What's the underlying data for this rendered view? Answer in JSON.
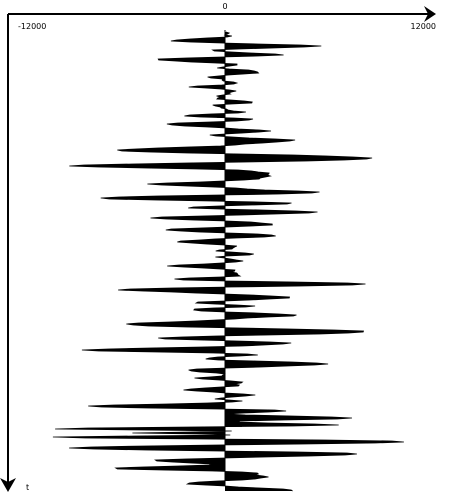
{
  "chart_data": {
    "type": "area",
    "orientation": "vertical-time",
    "title": "",
    "xlabel": "",
    "ylabel": "t",
    "xlim": [
      -12000,
      12000
    ],
    "x_ticks": [
      {
        "value": -12000,
        "label": "-12000"
      },
      {
        "value": 0,
        "label": "0"
      },
      {
        "value": 12000,
        "label": "12000"
      }
    ],
    "grid": false,
    "legend": "none",
    "trace_color": "#000000",
    "fill": "wiggle-both-sides",
    "n_samples": 460,
    "events": [
      {
        "t": 10,
        "a": -2300,
        "w": 4
      },
      {
        "t": 14,
        "a": 5200,
        "w": 5
      },
      {
        "t": 22,
        "a": 3600,
        "w": 4
      },
      {
        "t": 28,
        "a": -3000,
        "w": 4
      },
      {
        "t": 40,
        "a": 2200,
        "w": 4
      },
      {
        "t": 55,
        "a": -1900,
        "w": 3
      },
      {
        "t": 70,
        "a": 1700,
        "w": 3
      },
      {
        "t": 84,
        "a": -2800,
        "w": 3
      },
      {
        "t": 92,
        "a": -3000,
        "w": 4
      },
      {
        "t": 100,
        "a": 3000,
        "w": 4
      },
      {
        "t": 108,
        "a": 4200,
        "w": 5
      },
      {
        "t": 118,
        "a": -3900,
        "w": 4
      },
      {
        "t": 126,
        "a": 7600,
        "w": 5
      },
      {
        "t": 134,
        "a": -6600,
        "w": 4
      },
      {
        "t": 144,
        "a": 2800,
        "w": 5
      },
      {
        "t": 152,
        "a": -3400,
        "w": 3
      },
      {
        "t": 160,
        "a": 3500,
        "w": 4
      },
      {
        "t": 166,
        "a": -6200,
        "w": 4
      },
      {
        "t": 172,
        "a": 2200,
        "w": 3
      },
      {
        "t": 180,
        "a": 5000,
        "w": 4
      },
      {
        "t": 186,
        "a": -2500,
        "w": 3
      },
      {
        "t": 192,
        "a": 2300,
        "w": 3
      },
      {
        "t": 198,
        "a": -3200,
        "w": 3
      },
      {
        "t": 204,
        "a": 1900,
        "w": 3
      },
      {
        "t": 210,
        "a": -2400,
        "w": 4
      },
      {
        "t": 222,
        "a": 1700,
        "w": 3
      },
      {
        "t": 234,
        "a": -3100,
        "w": 4
      },
      {
        "t": 244,
        "a": 1600,
        "w": 3
      },
      {
        "t": 252,
        "a": 7500,
        "w": 4
      },
      {
        "t": 258,
        "a": -3300,
        "w": 4
      },
      {
        "t": 266,
        "a": 3400,
        "w": 4
      },
      {
        "t": 274,
        "a": 2000,
        "w": 3
      },
      {
        "t": 283,
        "a": 4000,
        "w": 4
      },
      {
        "t": 292,
        "a": -3500,
        "w": 4
      },
      {
        "t": 300,
        "a": 8100,
        "w": 5
      },
      {
        "t": 310,
        "a": 2900,
        "w": 3
      },
      {
        "t": 318,
        "a": -8500,
        "w": 4
      },
      {
        "t": 332,
        "a": 6000,
        "w": 5
      },
      {
        "t": 346,
        "a": -1700,
        "w": 3
      },
      {
        "t": 358,
        "a": -2300,
        "w": 4
      },
      {
        "t": 368,
        "a": -2400,
        "w": 4
      },
      {
        "t": 374,
        "a": -7800,
        "w": 4
      },
      {
        "t": 380,
        "a": 3800,
        "w": 4
      },
      {
        "t": 386,
        "a": 11000,
        "w": 4
      },
      {
        "t": 392,
        "a": 6500,
        "w": 4
      },
      {
        "t": 397,
        "a": -9000,
        "w": 3
      },
      {
        "t": 401,
        "a": -11500,
        "w": 2
      },
      {
        "t": 405,
        "a": -8800,
        "w": 3
      },
      {
        "t": 410,
        "a": 6800,
        "w": 4
      },
      {
        "t": 416,
        "a": -5200,
        "w": 4
      },
      {
        "t": 422,
        "a": 5800,
        "w": 4
      },
      {
        "t": 430,
        "a": -5500,
        "w": 4
      },
      {
        "t": 436,
        "a": -8300,
        "w": 4
      },
      {
        "t": 446,
        "a": 2500,
        "w": 4
      },
      {
        "t": 458,
        "a": 3500,
        "w": 5
      },
      {
        "t": 466,
        "a": -3700,
        "w": 4
      },
      {
        "t": 474,
        "a": 1900,
        "w": 4
      }
    ]
  }
}
